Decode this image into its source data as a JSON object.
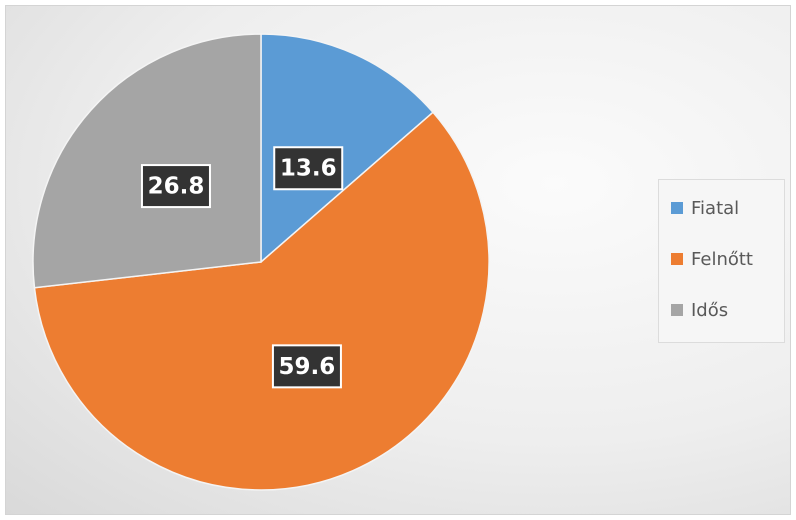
{
  "chart_data": {
    "type": "pie",
    "title": "",
    "categories": [
      "Fiatal",
      "Felnőtt",
      "Idős"
    ],
    "values": [
      13.6,
      59.6,
      26.8
    ],
    "data_labels": [
      "13.6",
      "59.6",
      "26.8"
    ],
    "colors": [
      "#5b9bd5",
      "#ed7d31",
      "#a5a5a5"
    ],
    "start_angle": "12 o'clock",
    "direction": "clockwise",
    "legend": {
      "placement": "right",
      "entries": [
        "Fiatal",
        "Felnőtt",
        "Idős"
      ]
    }
  }
}
